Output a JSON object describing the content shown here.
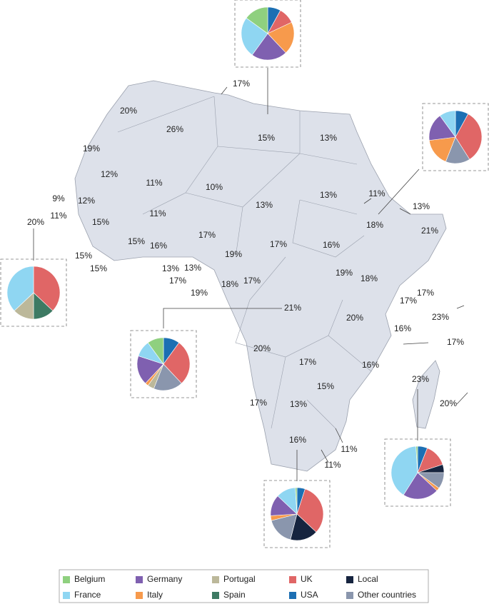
{
  "map_labels": [
    "17%",
    "20%",
    "26%",
    "15%",
    "13%",
    "19%",
    "12%",
    "11%",
    "10%",
    "13%",
    "11%",
    "9%",
    "12%",
    "13%",
    "11%",
    "20%",
    "11%",
    "13%",
    "15%",
    "18%",
    "21%",
    "17%",
    "15%",
    "15%",
    "16%",
    "17%",
    "16%",
    "15%",
    "13%",
    "13%",
    "19%",
    "17%",
    "19%",
    "18%",
    "17%",
    "19%",
    "18%",
    "17%",
    "21%",
    "17%",
    "20%",
    "23%",
    "16%",
    "20%",
    "17%",
    "17%",
    "16%",
    "23%",
    "15%",
    "17%",
    "13%",
    "20%",
    "16%",
    "11%",
    "11%"
  ],
  "legend": [
    {
      "name": "Belgium",
      "color": "#8fd07f"
    },
    {
      "name": "Germany",
      "color": "#7f60b0"
    },
    {
      "name": "Portugal",
      "color": "#bcb89a"
    },
    {
      "name": "UK",
      "color": "#e06666"
    },
    {
      "name": "Local",
      "color": "#16243f"
    },
    {
      "name": "France",
      "color": "#8fd6f2"
    },
    {
      "name": "Italy",
      "color": "#f79a4c"
    },
    {
      "name": "Spain",
      "color": "#3d7a63"
    },
    {
      "name": "USA",
      "color": "#1c6fb3"
    },
    {
      "name": "Other countries",
      "color": "#8a96ad"
    }
  ],
  "pies": [
    {
      "values": [
        15,
        22,
        0,
        10,
        0,
        25,
        20,
        0,
        8,
        0
      ]
    },
    {
      "values": [
        0,
        17,
        0,
        33,
        0,
        10,
        17,
        0,
        8,
        15
      ]
    },
    {
      "values": [
        0,
        0,
        13,
        37,
        0,
        37,
        0,
        13,
        0,
        0
      ]
    },
    {
      "values": [
        10,
        18,
        4,
        28,
        0,
        10,
        2,
        0,
        10,
        18
      ]
    },
    {
      "values": [
        1,
        13,
        0,
        32,
        17,
        12,
        3,
        0,
        5,
        17
      ]
    },
    {
      "values": [
        1,
        22,
        0,
        14,
        5,
        40,
        2,
        0,
        6,
        10
      ]
    }
  ]
}
